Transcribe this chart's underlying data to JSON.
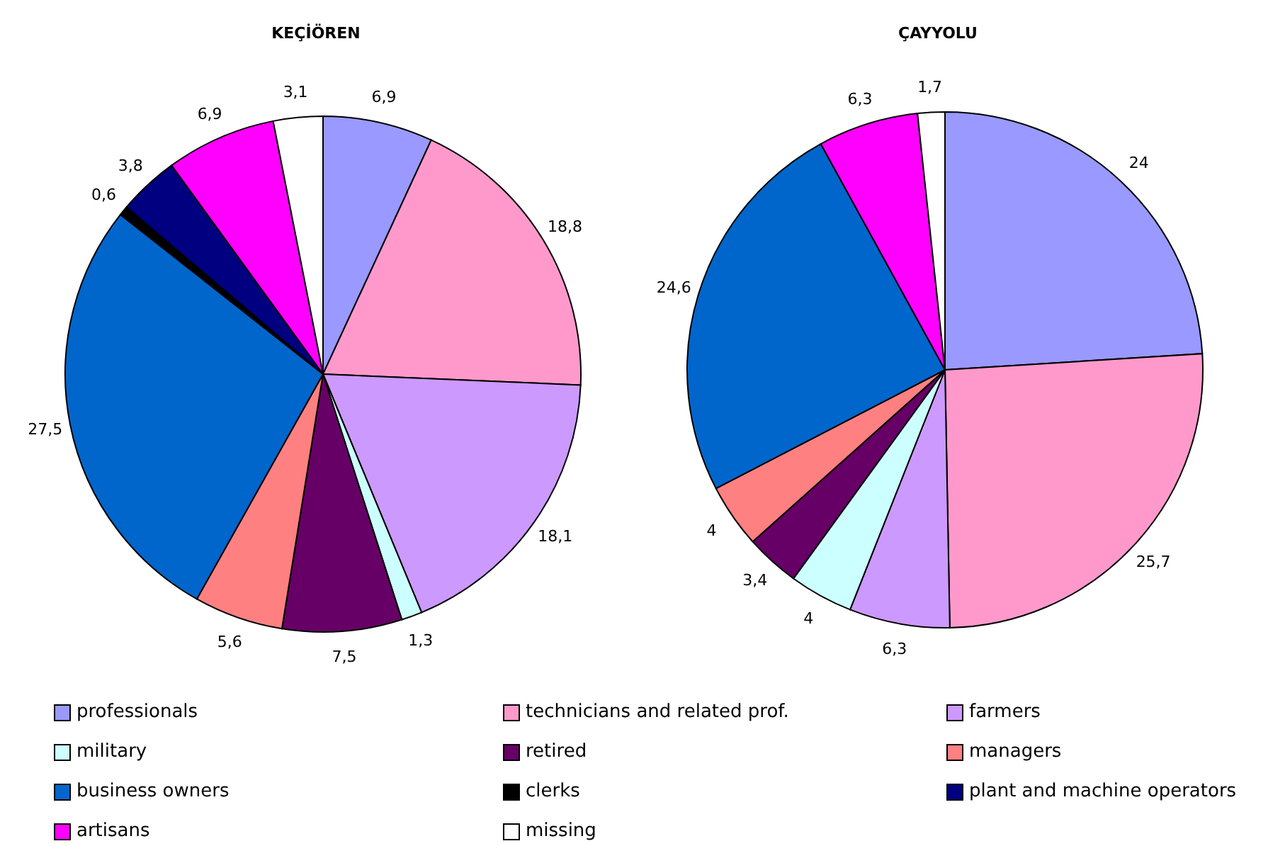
{
  "chart_data": [
    {
      "type": "pie",
      "title": "KEÇİÖREN",
      "categories": [
        "professionals",
        "technicians and related prof.",
        "farmers",
        "military",
        "retired",
        "managers",
        "business owners",
        "clerks",
        "plant and machine operators",
        "artisans",
        "missing"
      ],
      "values": [
        6.9,
        18.8,
        18.1,
        1.3,
        7.5,
        5.6,
        27.5,
        0.6,
        3.8,
        6.9,
        3.1
      ],
      "value_labels": [
        "6,9",
        "18,8",
        "18,1",
        "1,3",
        "7,5",
        "5,6",
        "27,5",
        "0,6",
        "3,8",
        "6,9",
        "3,1"
      ],
      "colors": [
        "#9999ff",
        "#ff99cc",
        "#cc99ff",
        "#ccffff",
        "#660066",
        "#ff8080",
        "#0066cc",
        "#000000",
        "#000080",
        "#ff00ff",
        "#ffffff"
      ],
      "legend": "bottom"
    },
    {
      "type": "pie",
      "title": "ÇAYYOLU",
      "categories": [
        null,
        null,
        null,
        null,
        null,
        null,
        null,
        null,
        null,
        null,
        null
      ],
      "values": [
        24,
        25.7,
        6.3,
        4,
        3.4,
        4,
        24.6,
        null,
        null,
        6.3,
        1.7
      ],
      "value_labels": [
        "24",
        "25,7",
        "6,3",
        "4",
        "3,4",
        "4",
        "24,6",
        null,
        null,
        "6,3",
        "1,7"
      ],
      "colors": [
        "#9999ff",
        "#ff99cc",
        "#cc99ff",
        "#ccffff",
        "#660066",
        "#ff8080",
        "#0066cc",
        "#000000",
        "#000080",
        "#ff00ff",
        "#ffffff"
      ]
    }
  ]
}
